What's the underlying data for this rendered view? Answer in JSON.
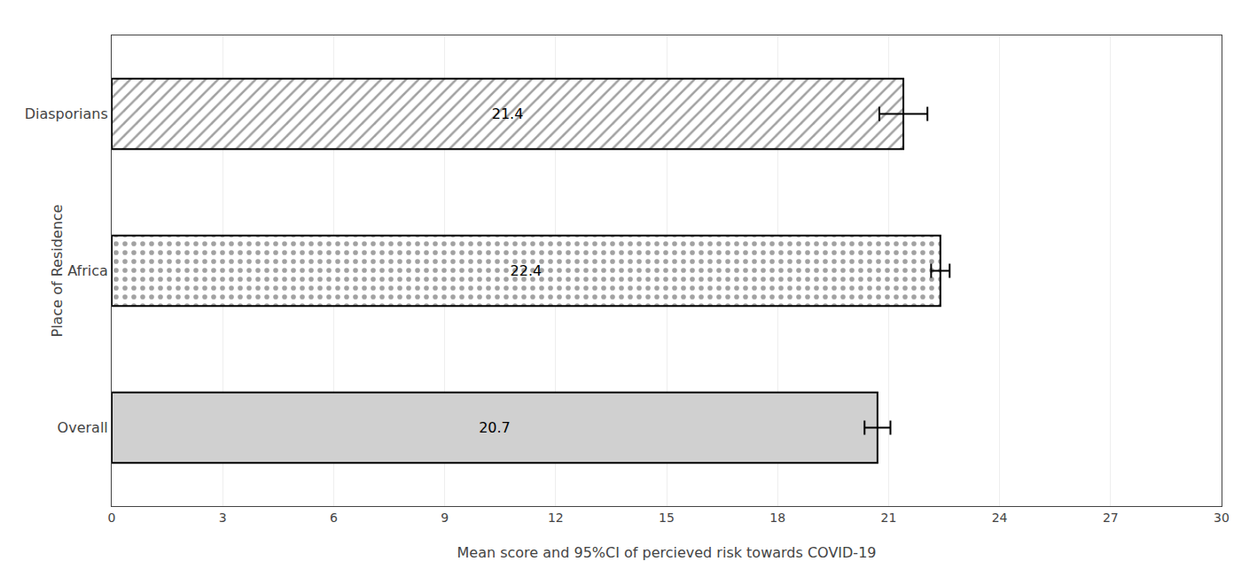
{
  "chart_data": {
    "type": "bar",
    "orientation": "horizontal",
    "categories": [
      "Overall",
      "Africa",
      "Diasporians"
    ],
    "values": [
      20.7,
      22.4,
      21.4
    ],
    "errors": [
      0.35,
      0.25,
      0.65
    ],
    "colors": [
      "#d0d0d0",
      "#ffffff",
      "#ffffff"
    ],
    "xlabel": "Mean score and 95%CI of percieved risk towards COVID-19",
    "ylabel": "Place of Residence",
    "xlim": [
      0,
      30
    ],
    "xticks": [
      0,
      3,
      6,
      9,
      12,
      15,
      18,
      21,
      24,
      27,
      30
    ],
    "grid": true,
    "data_labels": true
  }
}
